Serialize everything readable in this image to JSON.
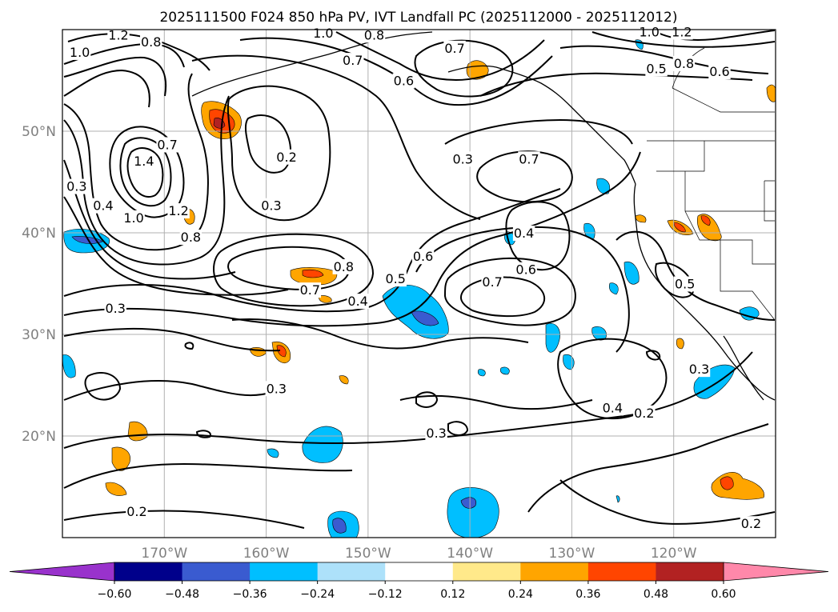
{
  "title": "2025111500 F024 850 hPa PV, IVT Landfall PC (2025112000 - 2025112012)",
  "map": {
    "extent": {
      "lon_min": -180,
      "lon_max": -110,
      "lat_min": 10,
      "lat_max": 60
    },
    "lat_ticks": [
      {
        "lat": 50,
        "label": "50°N"
      },
      {
        "lat": 40,
        "label": "40°N"
      },
      {
        "lat": 30,
        "label": "30°N"
      },
      {
        "lat": 20,
        "label": "20°N"
      }
    ],
    "lon_ticks": [
      {
        "lon": -170,
        "label": "170°W"
      },
      {
        "lon": -160,
        "label": "160°W"
      },
      {
        "lon": -150,
        "label": "150°W"
      },
      {
        "lon": -140,
        "label": "140°W"
      },
      {
        "lon": -130,
        "label": "130°W"
      },
      {
        "lon": -120,
        "label": "120°W"
      }
    ]
  },
  "colorbar": {
    "levels": [
      -0.6,
      -0.48,
      -0.36,
      -0.24,
      -0.12,
      0.12,
      0.24,
      0.36,
      0.48,
      0.6
    ],
    "tick_labels": [
      "−0.60",
      "−0.48",
      "−0.36",
      "−0.24",
      "−0.12",
      "0.12",
      "0.24",
      "0.36",
      "0.48",
      "0.60"
    ],
    "under_color": "#9932cc",
    "over_color": "#ff88aa",
    "colors": [
      "#00008b",
      "#3a5bd0",
      "#00bfff",
      "#ade1fa",
      "#ffffff",
      "#ffe98a",
      "#ffa500",
      "#ff4500",
      "#b22222"
    ]
  },
  "contour_labels": [
    {
      "text": "1.2",
      "lon": -174.5,
      "lat": 59.5
    },
    {
      "text": "0.8",
      "lon": -171.3,
      "lat": 58.8
    },
    {
      "text": "1.0",
      "lon": -178.3,
      "lat": 57.8
    },
    {
      "text": "1.0",
      "lon": -154.4,
      "lat": 59.7
    },
    {
      "text": "0.8",
      "lon": -149.4,
      "lat": 59.5
    },
    {
      "text": "0.7",
      "lon": -151.5,
      "lat": 57.0
    },
    {
      "text": "0.7",
      "lon": -141.5,
      "lat": 58.2
    },
    {
      "text": "0.6",
      "lon": -146.5,
      "lat": 55.0
    },
    {
      "text": "1.0",
      "lon": -122.4,
      "lat": 59.8
    },
    {
      "text": "1.2",
      "lon": -119.2,
      "lat": 59.8
    },
    {
      "text": "0.8",
      "lon": -119.0,
      "lat": 56.7
    },
    {
      "text": "0.5",
      "lon": -121.7,
      "lat": 56.2
    },
    {
      "text": "0.6",
      "lon": -115.5,
      "lat": 55.9
    },
    {
      "text": "0.7",
      "lon": -169.7,
      "lat": 48.7
    },
    {
      "text": "1.4",
      "lon": -172.0,
      "lat": 47.1
    },
    {
      "text": "0.2",
      "lon": -158.0,
      "lat": 47.5
    },
    {
      "text": "0.3",
      "lon": -178.6,
      "lat": 44.6
    },
    {
      "text": "0.4",
      "lon": -176.0,
      "lat": 42.7
    },
    {
      "text": "1.0",
      "lon": -173.0,
      "lat": 41.5
    },
    {
      "text": "1.2",
      "lon": -168.6,
      "lat": 42.2
    },
    {
      "text": "0.8",
      "lon": -167.4,
      "lat": 39.6
    },
    {
      "text": "0.3",
      "lon": -159.5,
      "lat": 42.7
    },
    {
      "text": "0.3",
      "lon": -140.7,
      "lat": 47.3
    },
    {
      "text": "0.7",
      "lon": -134.2,
      "lat": 47.3
    },
    {
      "text": "0.4",
      "lon": -134.7,
      "lat": 40.0
    },
    {
      "text": "0.8",
      "lon": -152.4,
      "lat": 36.7
    },
    {
      "text": "0.7",
      "lon": -155.7,
      "lat": 34.4
    },
    {
      "text": "0.6",
      "lon": -144.6,
      "lat": 37.7
    },
    {
      "text": "0.5",
      "lon": -147.3,
      "lat": 35.5
    },
    {
      "text": "0.4",
      "lon": -151.0,
      "lat": 33.3
    },
    {
      "text": "0.6",
      "lon": -134.5,
      "lat": 36.4
    },
    {
      "text": "0.7",
      "lon": -137.8,
      "lat": 35.2
    },
    {
      "text": "0.5",
      "lon": -118.9,
      "lat": 35.0
    },
    {
      "text": "0.3",
      "lon": -174.8,
      "lat": 32.6
    },
    {
      "text": "0.3",
      "lon": -159.0,
      "lat": 24.7
    },
    {
      "text": "0.3",
      "lon": -117.5,
      "lat": 26.6
    },
    {
      "text": "0.4",
      "lon": -126.0,
      "lat": 22.8
    },
    {
      "text": "0.2",
      "lon": -122.9,
      "lat": 22.3
    },
    {
      "text": "0.3",
      "lon": -143.3,
      "lat": 20.3
    },
    {
      "text": "0.2",
      "lon": -172.7,
      "lat": 12.6
    },
    {
      "text": "0.2",
      "lon": -112.4,
      "lat": 11.4
    }
  ]
}
